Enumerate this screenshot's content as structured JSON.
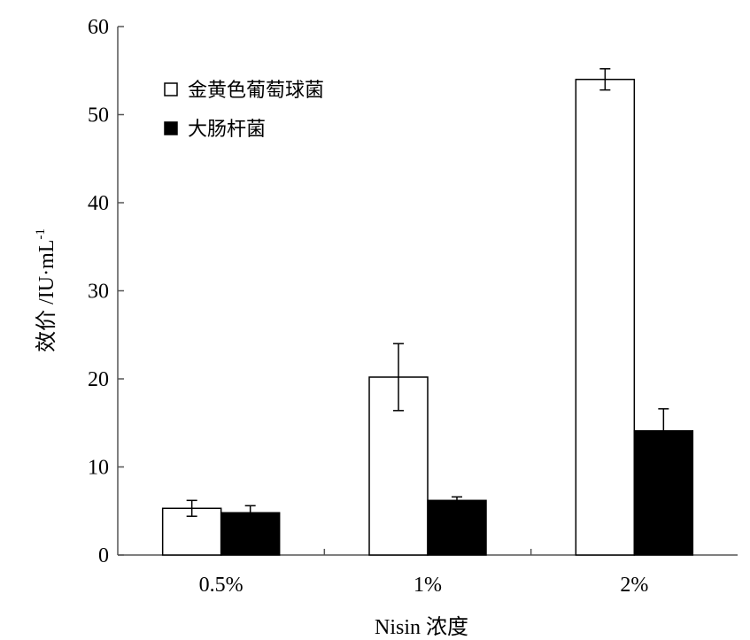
{
  "chart_data": {
    "type": "bar",
    "categories": [
      "0.5%",
      "1%",
      "2%"
    ],
    "series": [
      {
        "name": "金黄色葡萄球菌",
        "values": [
          5.3,
          20.2,
          54.0
        ],
        "errors": [
          0.9,
          3.8,
          1.2
        ],
        "fill": "#ffffff",
        "stroke": "#000000"
      },
      {
        "name": "大肠杆菌",
        "values": [
          4.8,
          6.2,
          14.1
        ],
        "errors": [
          0.8,
          0.4,
          2.5
        ],
        "fill": "#000000",
        "stroke": "#000000"
      }
    ],
    "xlabel": "Nisin 浓度",
    "ylabel": "效价 /IU·mL",
    "ylabel_superscript": "-1",
    "ylim": [
      0,
      60
    ],
    "yticks": [
      0,
      10,
      20,
      30,
      40,
      50,
      60
    ],
    "legend_position": "top-left",
    "grid": false
  }
}
